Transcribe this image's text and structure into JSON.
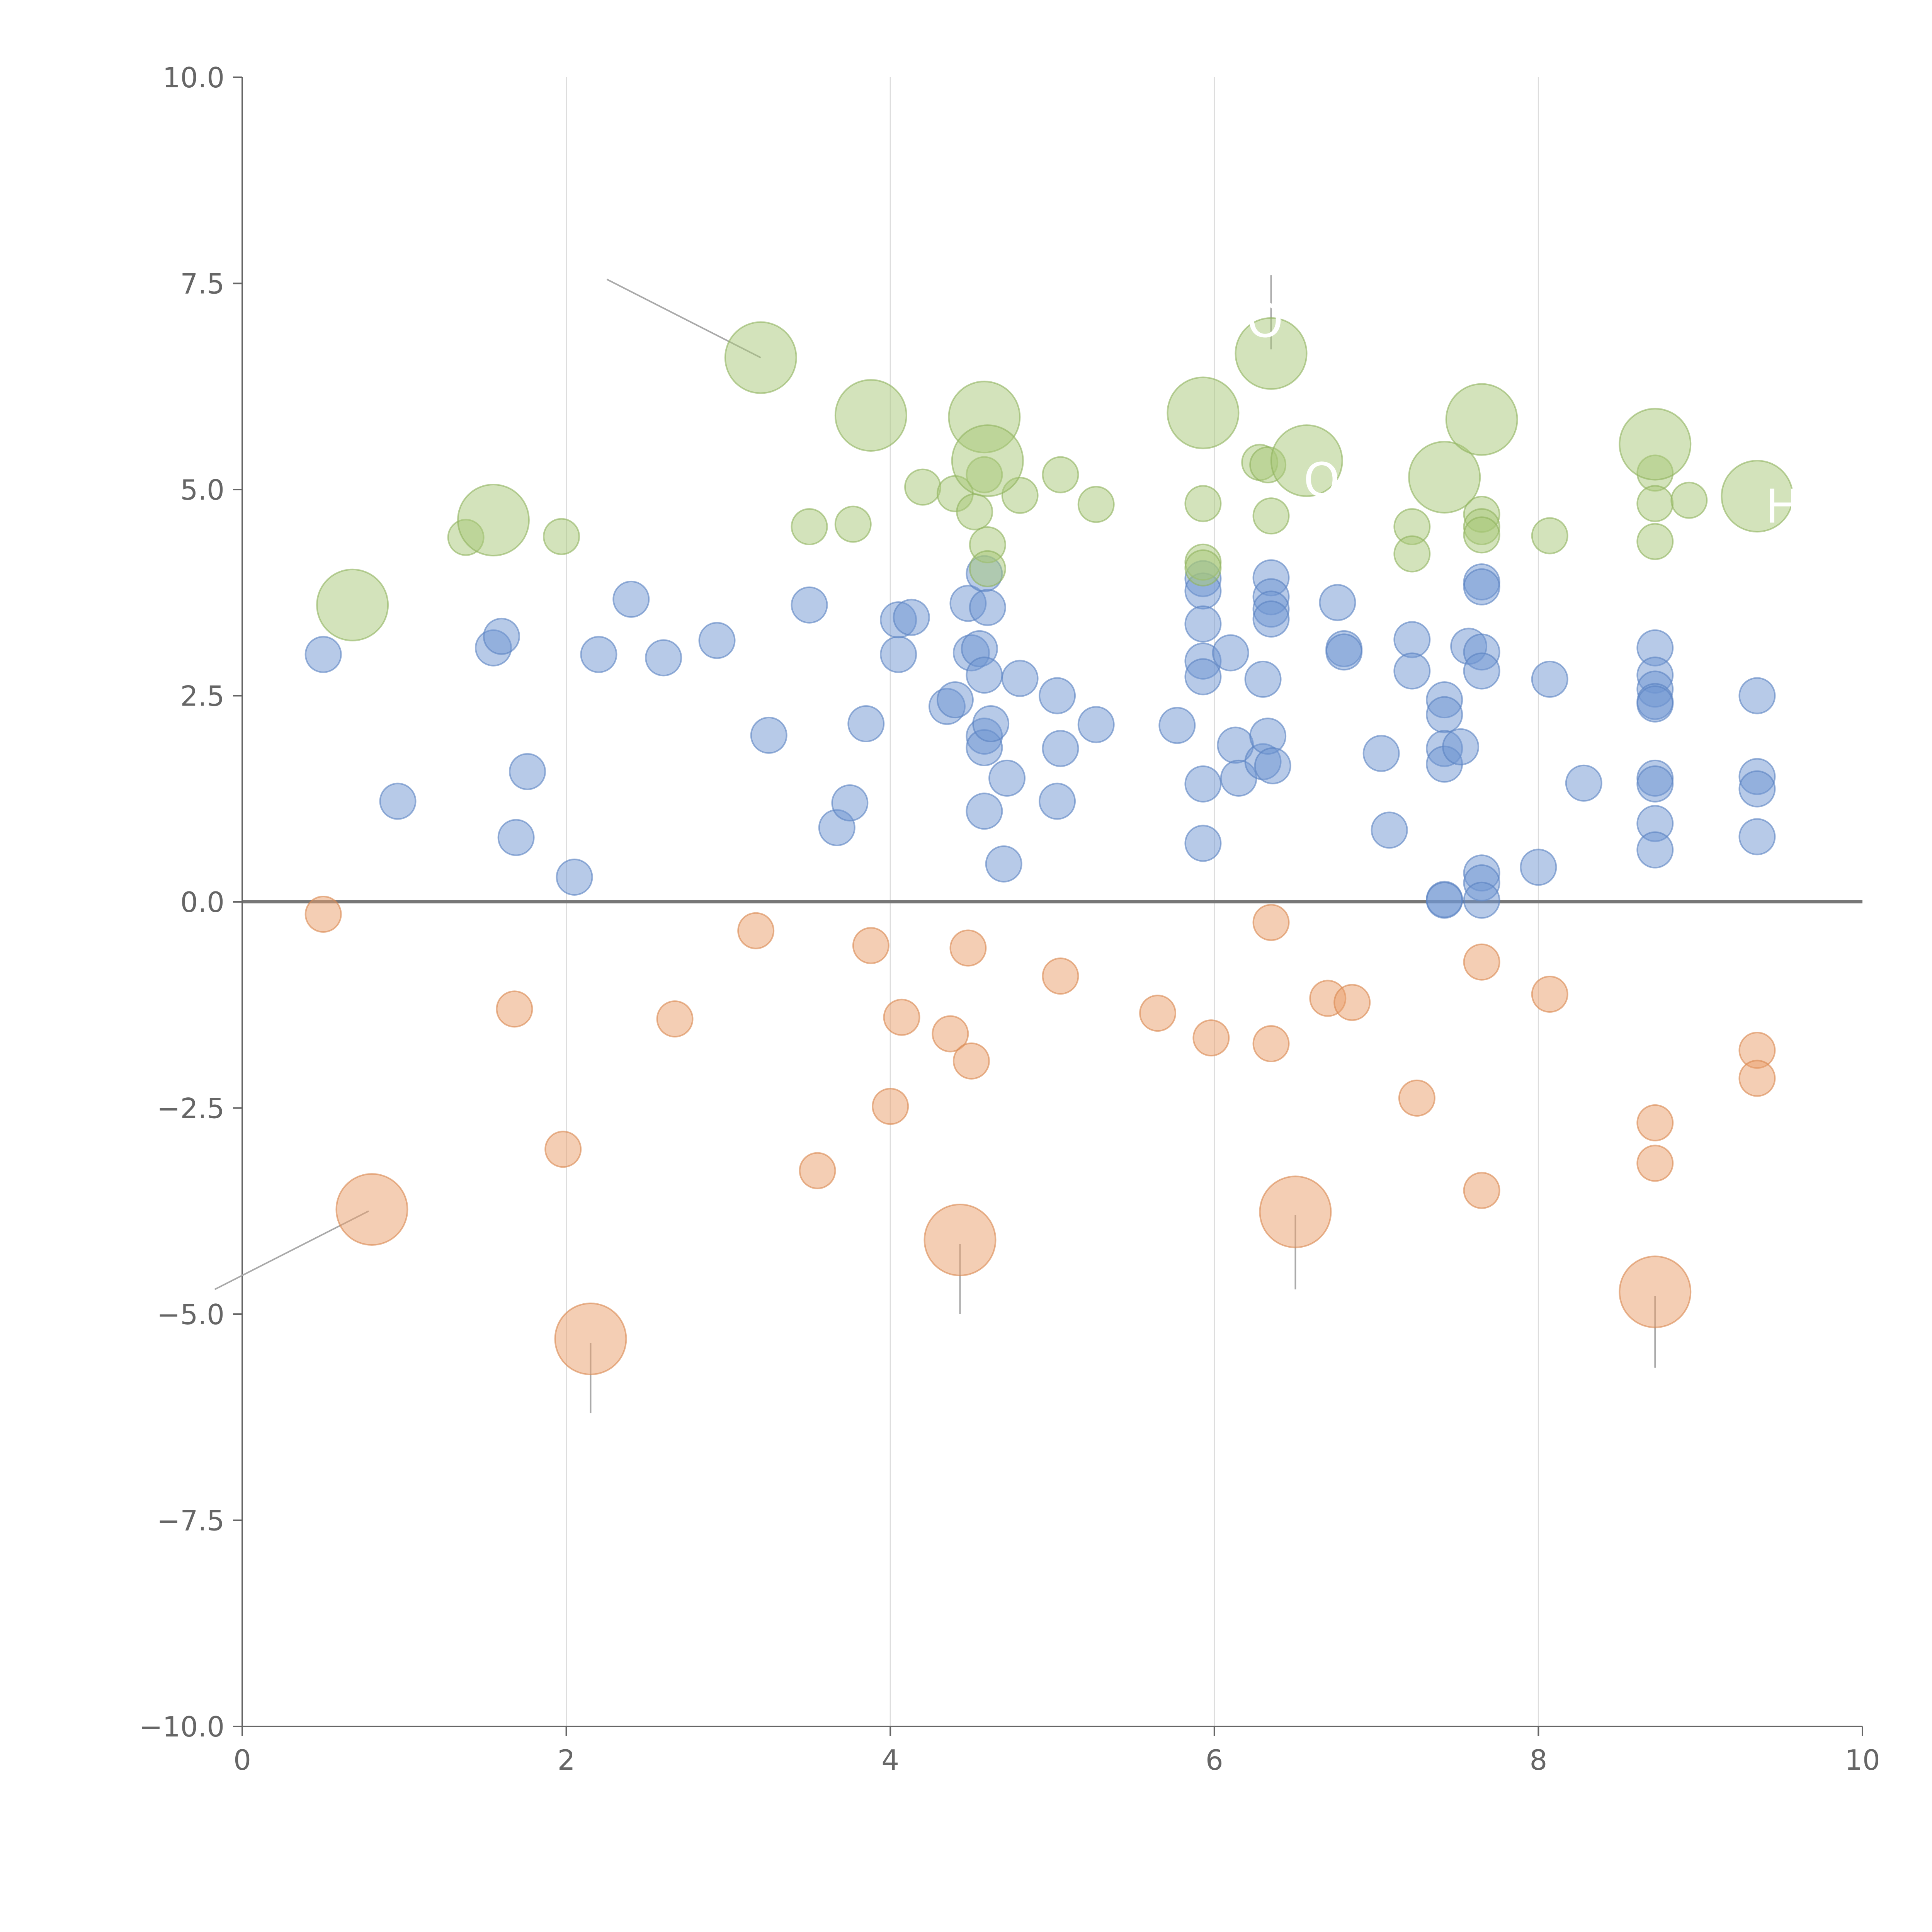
{
  "chart_data": {
    "type": "scatter",
    "title": "",
    "xlabel": "",
    "ylabel": "",
    "xlim": [
      0,
      10
    ],
    "ylim": [
      -10,
      10
    ],
    "x_ticks": [
      0,
      2,
      4,
      6,
      8,
      10
    ],
    "x_tick_labels": [
      "0",
      "2",
      "4",
      "6",
      "8",
      "10"
    ],
    "y_ticks": [
      -10,
      -7.5,
      -5,
      -2.5,
      0,
      2.5,
      5,
      7.5,
      10
    ],
    "y_tick_labels": [
      "−10.0",
      "−7.5",
      "−5.0",
      "−2.5",
      "0.0",
      "2.5",
      "5.0",
      "7.5",
      "10.0"
    ],
    "grid": "vertical",
    "reference_line_y": 0,
    "colors": {
      "blue": "#7096d1",
      "blue_stroke": "#5a82c2",
      "orange": "#ea9e6a",
      "orange_stroke": "#d9874f",
      "green": "#a8c878",
      "green_stroke": "#8fb35e",
      "axis": "#666666",
      "grid": "#dddddd",
      "zero": "#777777"
    },
    "series": [
      {
        "name": "blue",
        "color": "blue",
        "size": "small",
        "points": [
          [
            0.5,
            3.0
          ],
          [
            0.96,
            1.22
          ],
          [
            1.55,
            3.08
          ],
          [
            1.6,
            3.22
          ],
          [
            1.69,
            0.78
          ],
          [
            1.76,
            1.58
          ],
          [
            2.05,
            0.3
          ],
          [
            2.2,
            3.0
          ],
          [
            2.4,
            3.67
          ],
          [
            2.6,
            2.96
          ],
          [
            2.93,
            3.17
          ],
          [
            3.25,
            2.02
          ],
          [
            3.5,
            3.6
          ],
          [
            3.67,
            0.9
          ],
          [
            3.75,
            1.2
          ],
          [
            3.85,
            2.16
          ],
          [
            4.05,
            3.42
          ],
          [
            4.05,
            3.0
          ],
          [
            4.13,
            3.45
          ],
          [
            4.35,
            2.37
          ],
          [
            4.4,
            2.45
          ],
          [
            4.48,
            3.62
          ],
          [
            4.5,
            3.02
          ],
          [
            4.55,
            3.07
          ],
          [
            4.58,
            3.98
          ],
          [
            4.58,
            2.75
          ],
          [
            4.58,
            2.01
          ],
          [
            4.58,
            1.87
          ],
          [
            4.58,
            1.1
          ],
          [
            4.6,
            3.57
          ],
          [
            4.62,
            2.16
          ],
          [
            4.7,
            0.46
          ],
          [
            4.72,
            1.5
          ],
          [
            4.8,
            2.71
          ],
          [
            5.03,
            2.5
          ],
          [
            5.05,
            1.86
          ],
          [
            5.03,
            1.22
          ],
          [
            5.27,
            2.15
          ],
          [
            5.77,
            2.14
          ],
          [
            5.93,
            3.92
          ],
          [
            5.93,
            3.77
          ],
          [
            5.93,
            3.37
          ],
          [
            5.93,
            2.92
          ],
          [
            5.93,
            2.73
          ],
          [
            5.93,
            1.43
          ],
          [
            5.93,
            0.71
          ],
          [
            6.1,
            3.02
          ],
          [
            6.13,
            1.9
          ],
          [
            6.15,
            1.5
          ],
          [
            6.3,
            2.7
          ],
          [
            6.3,
            1.7
          ],
          [
            6.33,
            2.01
          ],
          [
            6.35,
            3.93
          ],
          [
            6.35,
            3.7
          ],
          [
            6.35,
            3.55
          ],
          [
            6.35,
            3.43
          ],
          [
            6.36,
            1.65
          ],
          [
            6.76,
            3.63
          ],
          [
            6.8,
            3.07
          ],
          [
            6.8,
            3.03
          ],
          [
            7.03,
            1.8
          ],
          [
            7.08,
            0.87
          ],
          [
            7.22,
            3.18
          ],
          [
            7.22,
            2.8
          ],
          [
            7.42,
            2.45
          ],
          [
            7.42,
            2.27
          ],
          [
            7.42,
            1.86
          ],
          [
            7.42,
            1.67
          ],
          [
            7.42,
            0.03
          ],
          [
            7.42,
            0.02
          ],
          [
            7.52,
            1.88
          ],
          [
            7.57,
            3.1
          ],
          [
            7.65,
            3.88
          ],
          [
            7.65,
            3.82
          ],
          [
            7.65,
            3.03
          ],
          [
            7.65,
            2.8
          ],
          [
            7.65,
            0.35
          ],
          [
            7.65,
            0.23
          ],
          [
            7.65,
            0.02
          ],
          [
            8.0,
            0.42
          ],
          [
            8.07,
            2.7
          ],
          [
            8.28,
            1.44
          ],
          [
            8.72,
            3.08
          ],
          [
            8.72,
            2.75
          ],
          [
            8.72,
            2.58
          ],
          [
            8.72,
            2.43
          ],
          [
            8.72,
            2.4
          ],
          [
            8.72,
            1.5
          ],
          [
            8.72,
            1.43
          ],
          [
            8.72,
            0.95
          ],
          [
            8.72,
            0.63
          ],
          [
            9.35,
            2.5
          ],
          [
            9.35,
            1.52
          ],
          [
            9.35,
            1.37
          ],
          [
            9.35,
            0.79
          ]
        ]
      },
      {
        "name": "orange",
        "color": "orange",
        "size": "small",
        "points": [
          [
            0.5,
            -0.15
          ],
          [
            1.68,
            -1.3
          ],
          [
            1.98,
            -3.0
          ],
          [
            2.67,
            -1.42
          ],
          [
            3.17,
            -0.35
          ],
          [
            3.55,
            -3.26
          ],
          [
            3.88,
            -0.53
          ],
          [
            4.0,
            -2.48
          ],
          [
            4.07,
            -1.4
          ],
          [
            4.37,
            -1.6
          ],
          [
            4.48,
            -0.56
          ],
          [
            4.5,
            -1.93
          ],
          [
            5.05,
            -0.9
          ],
          [
            5.65,
            -1.35
          ],
          [
            5.98,
            -1.65
          ],
          [
            6.35,
            -0.25
          ],
          [
            6.35,
            -1.72
          ],
          [
            6.7,
            -1.17
          ],
          [
            6.85,
            -1.22
          ],
          [
            7.25,
            -2.38
          ],
          [
            7.65,
            -0.73
          ],
          [
            7.65,
            -3.5
          ],
          [
            8.07,
            -1.12
          ],
          [
            8.72,
            -2.68
          ],
          [
            8.72,
            -3.17
          ],
          [
            9.35,
            -1.8
          ],
          [
            9.35,
            -2.14
          ]
        ]
      },
      {
        "name": "green",
        "color": "green",
        "size": "small",
        "points": [
          [
            1.38,
            4.42
          ],
          [
            1.97,
            4.43
          ],
          [
            3.5,
            4.55
          ],
          [
            3.77,
            4.58
          ],
          [
            4.2,
            5.03
          ],
          [
            4.4,
            4.95
          ],
          [
            4.52,
            4.73
          ],
          [
            4.58,
            5.18
          ],
          [
            4.6,
            4.33
          ],
          [
            4.6,
            4.04
          ],
          [
            4.8,
            4.93
          ],
          [
            5.05,
            5.18
          ],
          [
            5.27,
            4.82
          ],
          [
            5.93,
            4.83
          ],
          [
            5.93,
            4.12
          ],
          [
            5.93,
            4.05
          ],
          [
            6.28,
            5.33
          ],
          [
            6.33,
            5.3
          ],
          [
            6.35,
            4.68
          ],
          [
            7.22,
            4.55
          ],
          [
            7.22,
            4.22
          ],
          [
            7.65,
            4.7
          ],
          [
            7.65,
            4.55
          ],
          [
            7.65,
            4.45
          ],
          [
            8.07,
            4.44
          ],
          [
            8.72,
            5.2
          ],
          [
            8.72,
            4.83
          ],
          [
            8.72,
            4.37
          ],
          [
            8.93,
            4.87
          ]
        ]
      },
      {
        "name": "green-highlight",
        "color": "green",
        "size": "large",
        "points": [
          [
            0.68,
            3.6
          ],
          [
            1.55,
            4.63
          ],
          [
            3.2,
            6.6
          ],
          [
            3.88,
            5.9
          ],
          [
            4.58,
            5.88
          ],
          [
            4.6,
            5.35
          ],
          [
            5.93,
            5.93
          ],
          [
            6.35,
            6.65
          ],
          [
            6.57,
            5.35
          ],
          [
            7.42,
            5.15
          ],
          [
            7.65,
            5.85
          ],
          [
            8.72,
            5.55
          ],
          [
            9.35,
            4.92
          ]
        ]
      },
      {
        "name": "orange-highlight",
        "color": "orange",
        "size": "large",
        "points": [
          [
            0.8,
            -3.73
          ],
          [
            2.15,
            -5.3
          ],
          [
            4.43,
            -4.1
          ],
          [
            6.5,
            -3.76
          ],
          [
            8.72,
            -4.73
          ]
        ]
      }
    ],
    "annotations": [
      {
        "text": "O",
        "x": 6.2,
        "y": 6.85
      },
      {
        "text": "ORT",
        "x": 6.55,
        "y": 4.92
      },
      {
        "text": "H",
        "x": 9.4,
        "y": 4.6
      }
    ]
  }
}
